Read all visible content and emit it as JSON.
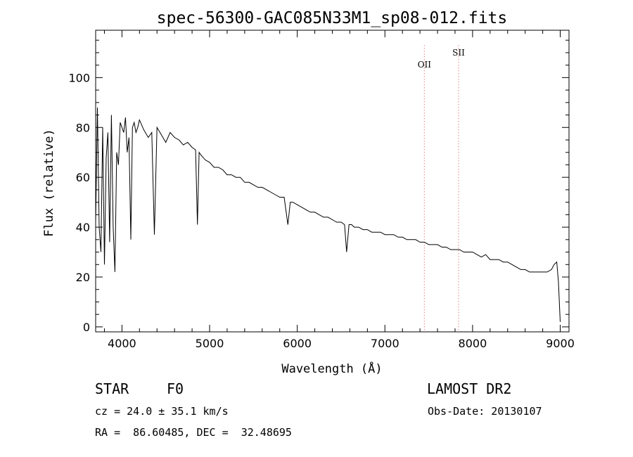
{
  "chart_data": {
    "type": "line",
    "title": "spec-56300-GAC085N33M1_sp08-012.fits",
    "xlabel": "Wavelength (Å)",
    "ylabel": "Flux (relative)",
    "xlim": [
      3700,
      9100
    ],
    "ylim": [
      -2,
      119
    ],
    "x_ticks": [
      4000,
      5000,
      6000,
      7000,
      8000,
      9000
    ],
    "y_ticks": [
      0,
      20,
      40,
      60,
      80,
      100
    ],
    "grid": false,
    "series": [
      {
        "x": [
          3700,
          3720,
          3740,
          3760,
          3780,
          3800,
          3820,
          3840,
          3860,
          3880,
          3900,
          3920,
          3940,
          3960,
          3980,
          4000,
          4020,
          4040,
          4060,
          4080,
          4101,
          4120,
          4140,
          4160,
          4180,
          4200,
          4250,
          4300,
          4340,
          4370,
          4400,
          4450,
          4500,
          4550,
          4600,
          4650,
          4700,
          4750,
          4800,
          4840,
          4861,
          4880,
          4900,
          4950,
          5000,
          5050,
          5100,
          5150,
          5200,
          5250,
          5300,
          5350,
          5400,
          5450,
          5500,
          5550,
          5600,
          5650,
          5700,
          5750,
          5800,
          5850,
          5893,
          5920,
          5950,
          6000,
          6050,
          6100,
          6150,
          6200,
          6250,
          6300,
          6350,
          6400,
          6450,
          6500,
          6540,
          6563,
          6590,
          6620,
          6650,
          6700,
          6750,
          6800,
          6850,
          6900,
          6950,
          7000,
          7050,
          7100,
          7150,
          7200,
          7250,
          7300,
          7350,
          7400,
          7450,
          7500,
          7550,
          7600,
          7650,
          7700,
          7750,
          7800,
          7850,
          7900,
          7950,
          8000,
          8050,
          8100,
          8150,
          8200,
          8250,
          8300,
          8350,
          8400,
          8450,
          8500,
          8550,
          8600,
          8650,
          8700,
          8750,
          8800,
          8850,
          8900,
          8930,
          8960,
          8980,
          9000
        ],
        "y": [
          42,
          88,
          40,
          30,
          80,
          25,
          68,
          78,
          34,
          85,
          40,
          22,
          70,
          65,
          82,
          80,
          78,
          84,
          70,
          76,
          35,
          80,
          82,
          78,
          80,
          83,
          79,
          76,
          78,
          37,
          80,
          77,
          74,
          78,
          76,
          75,
          73,
          74,
          72,
          71,
          41,
          70,
          69,
          67,
          66,
          64,
          64,
          63,
          61,
          61,
          60,
          60,
          58,
          58,
          57,
          56,
          56,
          55,
          54,
          53,
          52,
          52,
          41,
          50,
          50,
          49,
          48,
          47,
          46,
          46,
          45,
          44,
          44,
          43,
          42,
          42,
          41,
          30,
          41,
          41,
          40,
          40,
          39,
          39,
          38,
          38,
          38,
          37,
          37,
          37,
          36,
          36,
          35,
          35,
          35,
          34,
          34,
          33,
          33,
          33,
          32,
          32,
          31,
          31,
          31,
          30,
          30,
          30,
          29,
          28,
          29,
          27,
          27,
          27,
          26,
          26,
          25,
          24,
          23,
          23,
          22,
          22,
          22,
          22,
          22,
          23,
          25,
          26,
          18,
          2
        ]
      }
    ],
    "annotations": [
      {
        "label": "OII",
        "x": 7450
      },
      {
        "label": "SII",
        "x": 7840
      }
    ],
    "annotation_color": "#e06060"
  },
  "info": {
    "object_class": "STAR",
    "subclass": "F0",
    "survey": "LAMOST DR2",
    "redshift": "cz = 24.0 ± 35.1 km/s",
    "obs_date": "Obs-Date: 20130107",
    "coords": "RA =  86.60485, DEC =  32.48695"
  }
}
